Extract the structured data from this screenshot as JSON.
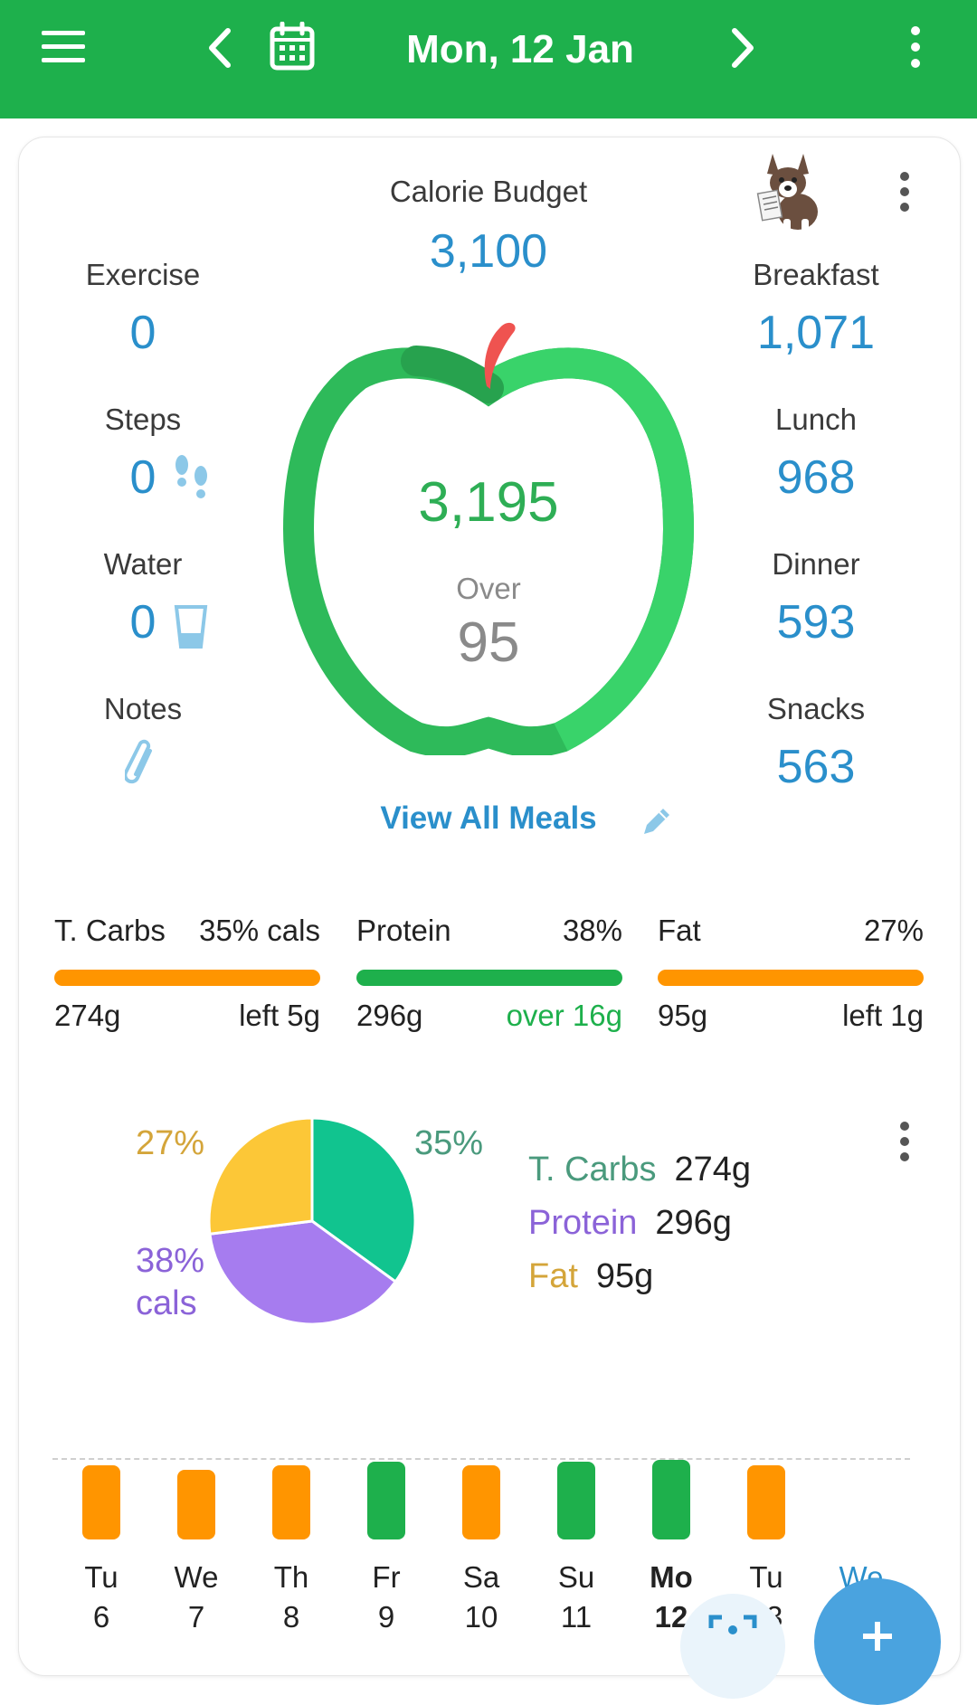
{
  "header": {
    "date": "Mon, 12 Jan",
    "icons": [
      "menu-icon",
      "chevron-left-icon",
      "calendar-icon",
      "chevron-right-icon",
      "more-vertical-icon"
    ]
  },
  "summary": {
    "budget_label": "Calorie Budget",
    "budget_value": "3,100",
    "left": [
      {
        "label": "Exercise",
        "value": "0"
      },
      {
        "label": "Steps",
        "value": "0"
      },
      {
        "label": "Water",
        "value": "0"
      },
      {
        "label": "Notes",
        "value": ""
      }
    ],
    "right": [
      {
        "label": "Breakfast",
        "value": "1,071"
      },
      {
        "label": "Lunch",
        "value": "968"
      },
      {
        "label": "Dinner",
        "value": "593"
      },
      {
        "label": "Snacks",
        "value": "563"
      }
    ],
    "eaten": "3,195",
    "status_label": "Over",
    "status_value": "95",
    "view_all": "View All Meals"
  },
  "macros": [
    {
      "name": "T. Carbs",
      "pct": "35% cals",
      "grams": "274g",
      "remaining": "left 5g",
      "color": "#ff9500",
      "remaining_color": "#222222"
    },
    {
      "name": "Protein",
      "pct": "38%",
      "grams": "296g",
      "remaining": "over 16g",
      "color": "#1eb04c",
      "remaining_color": "#1eb04c"
    },
    {
      "name": "Fat",
      "pct": "27%",
      "grams": "95g",
      "remaining": "left 1g",
      "color": "#ff9500",
      "remaining_color": "#222222"
    }
  ],
  "chart_data": {
    "type": "pie",
    "slices": [
      {
        "label": "T. Carbs",
        "value": 35,
        "grams": "274g",
        "color": "#11c48f",
        "legend_color": "#4a9a7d"
      },
      {
        "label": "Protein",
        "value": 38,
        "grams": "296g",
        "color": "#a67cef",
        "legend_color": "#8b63d8"
      },
      {
        "label": "Fat",
        "value": 27,
        "grams": "95g",
        "color": "#fcc737",
        "legend_color": "#d4a53a"
      }
    ],
    "pct_labels": {
      "carbs": "35%",
      "protein": "38%",
      "protein_unit": "cals",
      "fat": "27%"
    }
  },
  "week": [
    {
      "dow": "Tu",
      "day": "6",
      "status": "under",
      "level": 0.85
    },
    {
      "dow": "We",
      "day": "7",
      "status": "under",
      "level": 0.8
    },
    {
      "dow": "Th",
      "day": "8",
      "status": "under",
      "level": 0.85
    },
    {
      "dow": "Fr",
      "day": "9",
      "status": "over",
      "level": 0.9
    },
    {
      "dow": "Sa",
      "day": "10",
      "status": "under",
      "level": 0.85
    },
    {
      "dow": "Su",
      "day": "11",
      "status": "over",
      "level": 0.9
    },
    {
      "dow": "Mo",
      "day": "12",
      "status": "over",
      "level": 0.92
    },
    {
      "dow": "Tu",
      "day": "13",
      "status": "under",
      "level": 0.85
    },
    {
      "dow": "We",
      "day": "",
      "status": "none",
      "level": 0
    }
  ],
  "colors": {
    "brand": "#1eb04c",
    "accent": "#2a8fcb",
    "under": "#ff9500",
    "over": "#1eb04c"
  }
}
